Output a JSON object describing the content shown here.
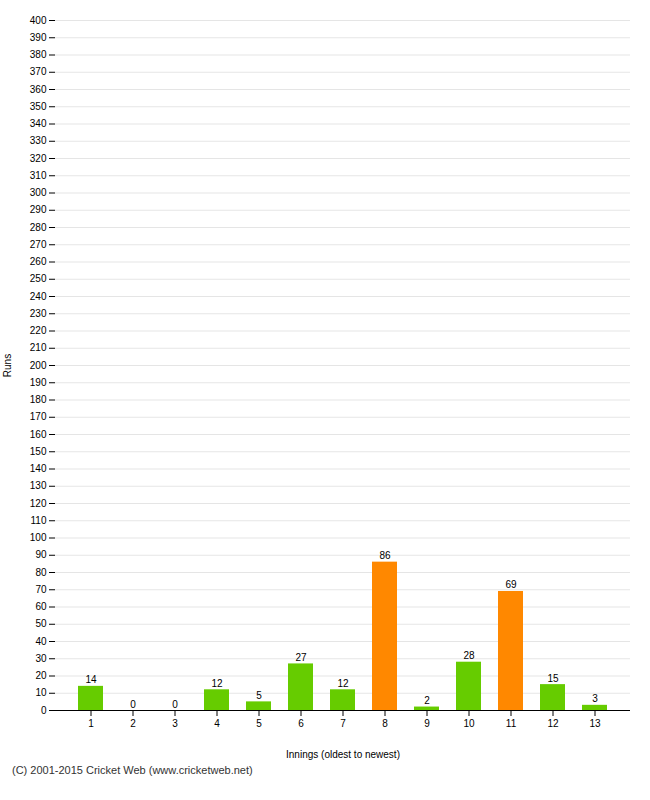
{
  "chart_data": {
    "type": "bar",
    "xlabel": "Innings (oldest to newest)",
    "ylabel": "Runs",
    "categories": [
      1,
      2,
      3,
      4,
      5,
      6,
      7,
      8,
      9,
      10,
      11,
      12,
      13
    ],
    "values": [
      14,
      0,
      0,
      12,
      5,
      27,
      12,
      86,
      2,
      28,
      69,
      15,
      3
    ],
    "colors": [
      "#66cc00",
      "#66cc00",
      "#66cc00",
      "#66cc00",
      "#66cc00",
      "#66cc00",
      "#66cc00",
      "#ff8800",
      "#66cc00",
      "#66cc00",
      "#ff8800",
      "#66cc00",
      "#66cc00"
    ],
    "ylim": [
      0,
      400
    ],
    "yticks": [
      0,
      10,
      20,
      30,
      40,
      50,
      60,
      70,
      80,
      90,
      100,
      110,
      120,
      130,
      140,
      150,
      160,
      170,
      180,
      190,
      200,
      210,
      220,
      230,
      240,
      250,
      260,
      270,
      280,
      290,
      300,
      310,
      320,
      330,
      340,
      350,
      360,
      370,
      380,
      390,
      400
    ],
    "grid": true,
    "data_labels": true,
    "annotations": [
      "(C) 2001-2015 Cricket Web (www.cricketweb.net)"
    ]
  }
}
